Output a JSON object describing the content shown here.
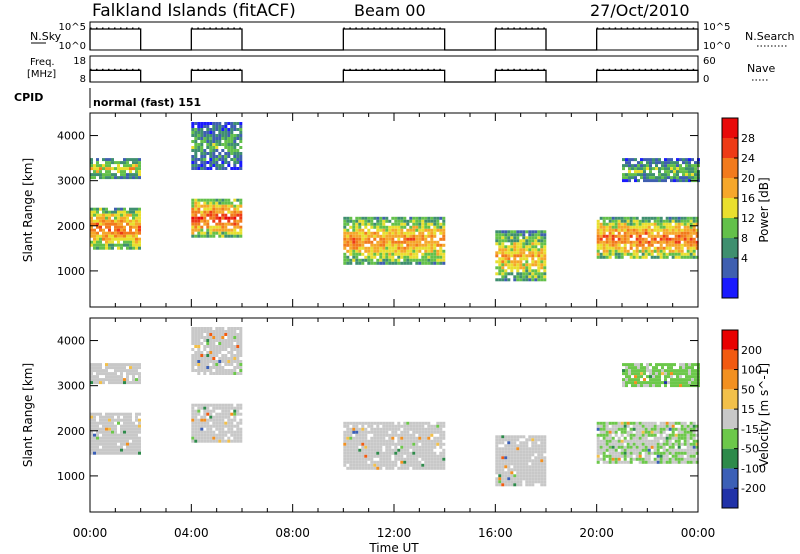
{
  "header": {
    "title": "Falkland Islands (fitACF)",
    "beam": "Beam 00",
    "date": "27/Oct/2010"
  },
  "params": {
    "nsky_label": "N.Sky",
    "nsky_ticks": [
      "10^5",
      "10^0"
    ],
    "nsearch_label": "N.Search",
    "nsearch_ticks": [
      "10^5",
      "10^0"
    ],
    "freq_label_1": "Freq.",
    "freq_label_2": "[MHz]",
    "freq_ticks": [
      "18",
      "8"
    ],
    "nave_label": "Nave",
    "nave_ticks": [
      "60",
      "0"
    ],
    "cpid_label": "CPID",
    "cpid_value": "normal (fast) 151"
  },
  "axes": {
    "ylabel": "Slant Range [km]",
    "yticks": [
      "4000",
      "3000",
      "2000",
      "1000"
    ],
    "xlabel": "Time UT",
    "xticks": [
      "00:00",
      "04:00",
      "08:00",
      "12:00",
      "16:00",
      "20:00",
      "00:00"
    ]
  },
  "power_colorbar": {
    "label": "Power [dB]",
    "ticks": [
      "28",
      "24",
      "20",
      "16",
      "12",
      "8",
      "4"
    ],
    "colors": [
      "#1a1aff",
      "#3f5fb0",
      "#3f8f6f",
      "#63c04a",
      "#e9df2e",
      "#f6a72a",
      "#f27a1c",
      "#ee3a16",
      "#e80a0a"
    ]
  },
  "velocity_colorbar": {
    "label": "Velocity [m s^-1]",
    "ticks": [
      "200",
      "100",
      "50",
      "15",
      "-15",
      "-50",
      "-100",
      "-200"
    ],
    "colors": [
      "#2032a8",
      "#3b5fb6",
      "#2d8a4a",
      "#6cc84a",
      "#c8c8c8",
      "#f2c04a",
      "#f29020",
      "#f25a10",
      "#e80000"
    ]
  },
  "chart_data": [
    {
      "type": "heatmap",
      "title": "Power",
      "xlabel": "Time UT",
      "ylabel": "Slant Range [km]",
      "xlim": [
        0,
        24
      ],
      "ylim": [
        200,
        4500
      ],
      "value_label": "Power [dB]",
      "color_range": [
        0,
        30
      ],
      "observing_periods_hours": [
        [
          0,
          2
        ],
        [
          4,
          6
        ],
        [
          10,
          14
        ],
        [
          16,
          18
        ],
        [
          20,
          24
        ]
      ],
      "echo_regions": [
        {
          "t": [
            0,
            2
          ],
          "range_km": [
            1500,
            2400
          ],
          "power_db": 22
        },
        {
          "t": [
            0,
            2
          ],
          "range_km": [
            3100,
            3500
          ],
          "power_db": 16
        },
        {
          "t": [
            4,
            6
          ],
          "range_km": [
            1800,
            2600
          ],
          "power_db": 24
        },
        {
          "t": [
            4,
            6
          ],
          "range_km": [
            3300,
            4300
          ],
          "power_db": 10
        },
        {
          "t": [
            10,
            14
          ],
          "range_km": [
            1200,
            2200
          ],
          "power_db": 20
        },
        {
          "t": [
            16,
            18
          ],
          "range_km": [
            800,
            1900
          ],
          "power_db": 18
        },
        {
          "t": [
            20,
            24
          ],
          "range_km": [
            1300,
            2200
          ],
          "power_db": 22
        },
        {
          "t": [
            21,
            24
          ],
          "range_km": [
            3000,
            3500
          ],
          "power_db": 12
        }
      ]
    },
    {
      "type": "heatmap",
      "title": "Velocity",
      "xlabel": "Time UT",
      "ylabel": "Slant Range [km]",
      "xlim": [
        0,
        24
      ],
      "ylim": [
        200,
        4500
      ],
      "value_label": "Velocity [m s^-1]",
      "color_range": [
        -200,
        200
      ],
      "observing_periods_hours": [
        [
          0,
          2
        ],
        [
          4,
          6
        ],
        [
          10,
          14
        ],
        [
          16,
          18
        ],
        [
          20,
          24
        ]
      ],
      "echo_regions": [
        {
          "t": [
            0,
            2
          ],
          "range_km": [
            1500,
            2400
          ],
          "velocity": -10
        },
        {
          "t": [
            0,
            2
          ],
          "range_km": [
            3100,
            3500
          ],
          "velocity": 5
        },
        {
          "t": [
            4,
            6
          ],
          "range_km": [
            1800,
            2600
          ],
          "velocity": 0
        },
        {
          "t": [
            4,
            6
          ],
          "range_km": [
            3300,
            4300
          ],
          "velocity": 10
        },
        {
          "t": [
            10,
            14
          ],
          "range_km": [
            1200,
            2200
          ],
          "velocity": 0
        },
        {
          "t": [
            16,
            18
          ],
          "range_km": [
            800,
            1900
          ],
          "velocity": -5
        },
        {
          "t": [
            20,
            24
          ],
          "range_km": [
            1300,
            2200
          ],
          "velocity": -20
        },
        {
          "t": [
            21,
            24
          ],
          "range_km": [
            3000,
            3500
          ],
          "velocity": -30
        }
      ]
    }
  ]
}
